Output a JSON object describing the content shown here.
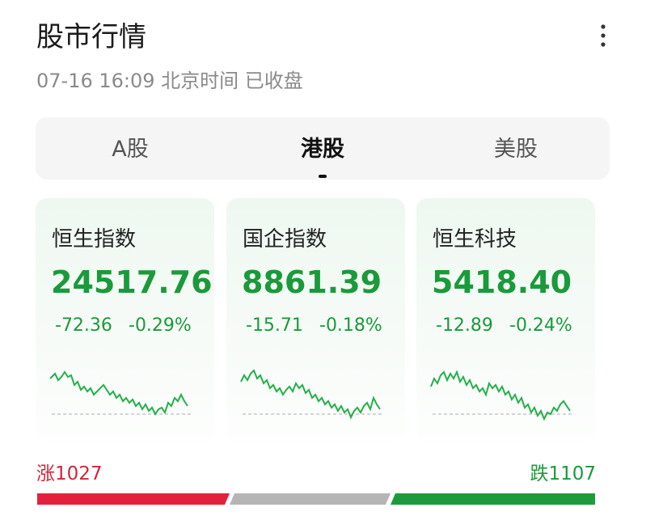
{
  "header": {
    "title": "股市行情",
    "subtitle": "07-16 16:09 北京时间 已收盘"
  },
  "tabs": [
    "A股",
    "港股",
    "美股"
  ],
  "active_tab": 1,
  "cards": [
    {
      "name": "恒生指数",
      "value": "24517.76",
      "change": "-72.36",
      "percent": "-0.29%"
    },
    {
      "name": "国企指数",
      "value": "8861.39",
      "change": "-15.71",
      "percent": "-0.18%"
    },
    {
      "name": "恒生科技",
      "value": "5418.40",
      "change": "-12.89",
      "percent": "-0.24%"
    }
  ],
  "breadth": {
    "up": "涨1027",
    "down": "跌1107"
  }
}
